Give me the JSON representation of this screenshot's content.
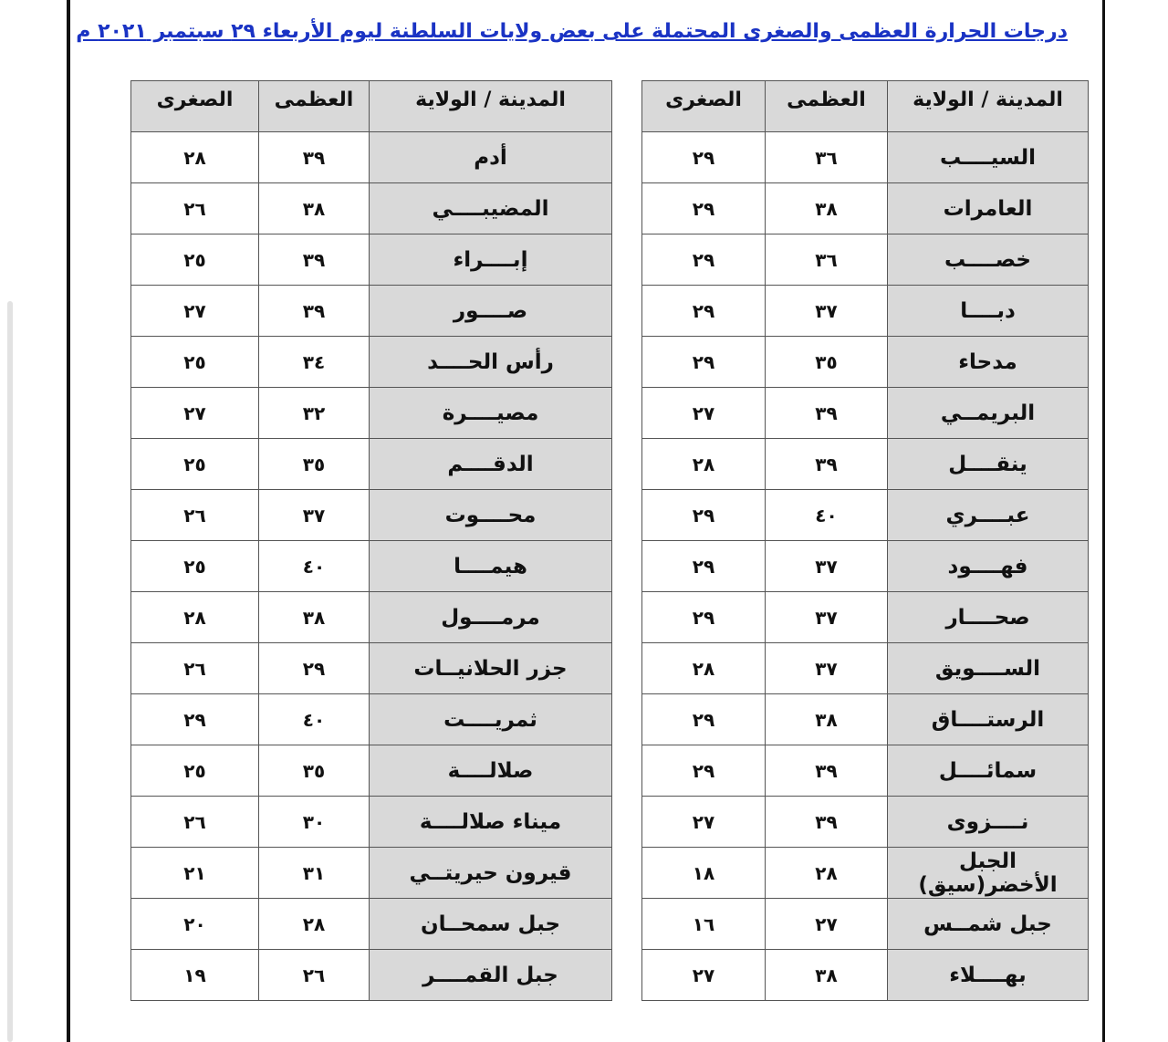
{
  "title": "درجات الحرارة العظمى والصغرى المحتملة على بعض ولايات السلطنة ليوم الأربعاء ٢٩ سبتمبر ٢٠٢١ م",
  "tables": [
    {
      "header": [
        "المدينة / الولاية",
        "العظمى",
        "الصغرى"
      ],
      "rows": [
        [
          "السيــــب",
          "٣٦",
          "٢٩"
        ],
        [
          "العامرات",
          "٣٨",
          "٢٩"
        ],
        [
          "خصــــب",
          "٣٦",
          "٢٩"
        ],
        [
          "دبــــا",
          "٣٧",
          "٢٩"
        ],
        [
          "مدحاء",
          "٣٥",
          "٢٩"
        ],
        [
          "البريمــي",
          "٣٩",
          "٢٧"
        ],
        [
          "ينقــــل",
          "٣٩",
          "٢٨"
        ],
        [
          "عبــــري",
          "٤٠",
          "٢٩"
        ],
        [
          "فهــــود",
          "٣٧",
          "٢٩"
        ],
        [
          "صحــــار",
          "٣٧",
          "٢٩"
        ],
        [
          "الســــويق",
          "٣٧",
          "٢٨"
        ],
        [
          "الرستــــاق",
          "٣٨",
          "٢٩"
        ],
        [
          "سمائــــل",
          "٣٩",
          "٢٩"
        ],
        [
          "نــــزوى",
          "٣٩",
          "٢٧"
        ],
        [
          "الجبل الأخضر(سيق)",
          "٢٨",
          "١٨"
        ],
        [
          "جبل شمــس",
          "٢٧",
          "١٦"
        ],
        [
          "بهــــلاء",
          "٣٨",
          "٢٧"
        ]
      ]
    },
    {
      "header": [
        "المدينة / الولاية",
        "العظمى",
        "الصغرى"
      ],
      "rows": [
        [
          "أدم",
          "٣٩",
          "٢٨"
        ],
        [
          "المضيبــــي",
          "٣٨",
          "٢٦"
        ],
        [
          "إبــــراء",
          "٣٩",
          "٢٥"
        ],
        [
          "صــــور",
          "٣٩",
          "٢٧"
        ],
        [
          "رأس الحــــد",
          "٣٤",
          "٢٥"
        ],
        [
          "مصيــــرة",
          "٣٢",
          "٢٧"
        ],
        [
          "الدقــــم",
          "٣٥",
          "٢٥"
        ],
        [
          "محــــوت",
          "٣٧",
          "٢٦"
        ],
        [
          "هيمــــا",
          "٤٠",
          "٢٥"
        ],
        [
          "مرمــــول",
          "٣٨",
          "٢٨"
        ],
        [
          "جزر الحلانيــات",
          "٢٩",
          "٢٦"
        ],
        [
          "ثمريــــت",
          "٤٠",
          "٢٩"
        ],
        [
          "صلالــــة",
          "٣٥",
          "٢٥"
        ],
        [
          "ميناء صلالــــة",
          "٣٠",
          "٢٦"
        ],
        [
          "قيرون حيريتــي",
          "٣١",
          "٢١"
        ],
        [
          "جبل سمحــان",
          "٢٨",
          "٢٠"
        ],
        [
          "جبل القمــــر",
          "٢٦",
          "١٩"
        ]
      ]
    }
  ]
}
